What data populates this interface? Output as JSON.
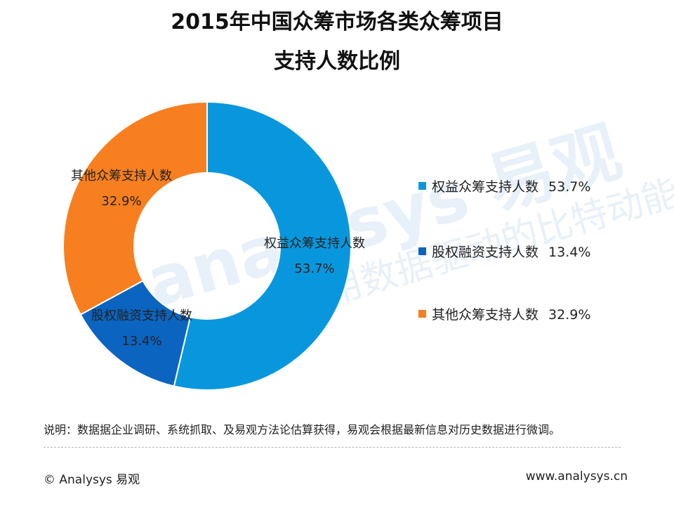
{
  "chart_data": {
    "type": "pie",
    "style": "donut",
    "title": "2015年中国众筹市场各类众筹项目",
    "subtitle": "支持人数比例",
    "series": [
      {
        "name": "权益众筹支持人数",
        "value": 53.7,
        "label": "53.7%",
        "color": "#0897dd"
      },
      {
        "name": "股权融资支持人数",
        "value": 13.4,
        "label": "13.4%",
        "color": "#0b64c0"
      },
      {
        "name": "其他众筹支持人数",
        "value": 32.9,
        "label": "32.9%",
        "color": "#f77f20"
      }
    ],
    "legend_position": "right",
    "legend": [
      {
        "name": "权益众筹支持人数",
        "label": "53.7%"
      },
      {
        "name": "股权融资支持人数",
        "label": "13.4%"
      },
      {
        "name": "其他众筹支持人数",
        "label": "32.9%"
      }
    ]
  },
  "note": "说明：数据据企业调研、系统抓取、及易观方法论估算获得，易观会根据最新信息对历史数据进行微调。",
  "footer": {
    "copyright": "© Analysys 易观",
    "website": "www.analysys.cn"
  },
  "watermark": {
    "text": "analysys 易观",
    "slogan": "用数据驱动的比特动能"
  }
}
